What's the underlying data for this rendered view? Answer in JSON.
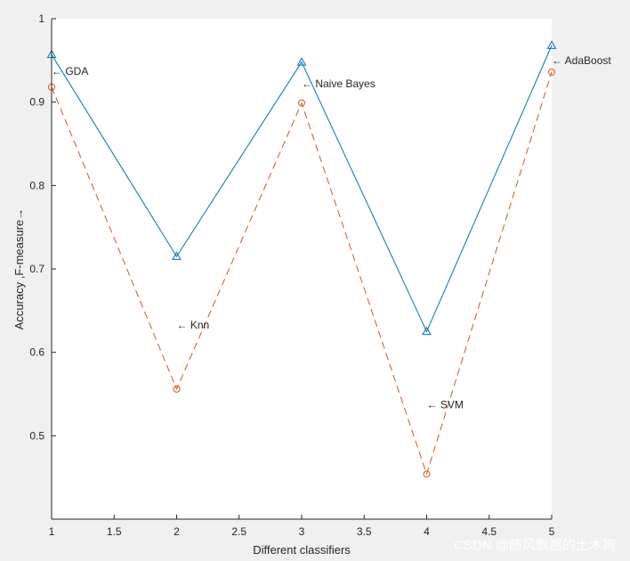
{
  "chart_data": {
    "type": "line",
    "title": "",
    "xlabel": "Different classifiers",
    "ylabel": "Accuracy ,F-measure→",
    "xlim": [
      1,
      5
    ],
    "ylim": [
      0.4,
      1.0
    ],
    "xticks": [
      "1",
      "1.5",
      "2",
      "2.5",
      "3",
      "3.5",
      "4",
      "4.5",
      "5"
    ],
    "yticks": [
      "0.5",
      "0.6",
      "0.7",
      "0.8",
      "0.9",
      "1"
    ],
    "grid": false,
    "series": [
      {
        "x": [
          1,
          2,
          3,
          4,
          5
        ],
        "values": [
          0.957,
          0.715,
          0.948,
          0.625,
          0.968
        ],
        "color": "#0072bd",
        "line": "solid",
        "marker": "triangle"
      },
      {
        "x": [
          1,
          2,
          3,
          4,
          5
        ],
        "values": [
          0.918,
          0.556,
          0.899,
          0.454,
          0.936
        ],
        "color": "#d95319",
        "line": "dashed",
        "marker": "circle"
      }
    ],
    "annotations": [
      {
        "text": "← GDA",
        "x": 1,
        "y": 0.937
      },
      {
        "text": "← Knn",
        "x": 2,
        "y": 0.633
      },
      {
        "text": "← Naive Bayes",
        "x": 3,
        "y": 0.922
      },
      {
        "text": "← SVM",
        "x": 4,
        "y": 0.537
      },
      {
        "text": "← AdaBoost",
        "x": 5,
        "y": 0.95
      }
    ]
  },
  "watermark": "CSDN @随风飘摇的土木狗"
}
